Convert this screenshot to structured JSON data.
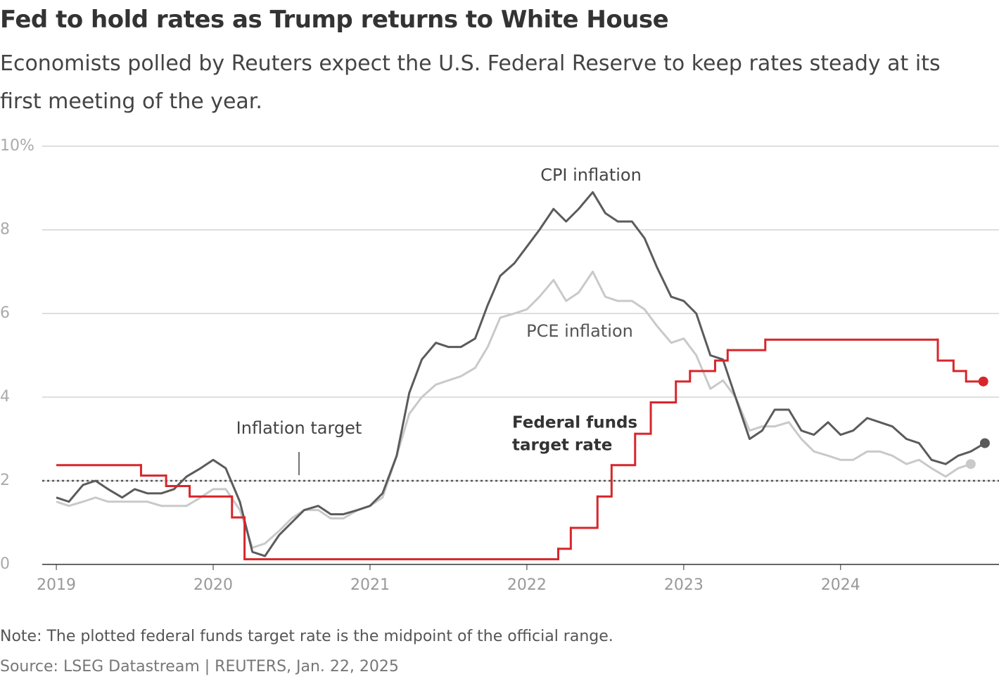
{
  "chart_data": {
    "type": "line",
    "title": "Fed to hold rates as Trump returns to White House",
    "subtitle": "Economists polled by Reuters expect the U.S. Federal Reserve to keep rates steady at its first meeting of the year.",
    "note": "Note: The plotted federal funds target rate is the midpoint of the official range.",
    "source": "Source: LSEG Datastream | REUTERS, Jan. 22, 2025",
    "x": [
      2019.0,
      2019.08,
      2019.17,
      2019.25,
      2019.33,
      2019.42,
      2019.5,
      2019.58,
      2019.67,
      2019.75,
      2019.83,
      2019.92,
      2020.0,
      2020.08,
      2020.17,
      2020.25,
      2020.33,
      2020.42,
      2020.5,
      2020.58,
      2020.67,
      2020.75,
      2020.83,
      2020.92,
      2021.0,
      2021.08,
      2021.17,
      2021.25,
      2021.33,
      2021.42,
      2021.5,
      2021.58,
      2021.67,
      2021.75,
      2021.83,
      2021.92,
      2022.0,
      2022.08,
      2022.17,
      2022.25,
      2022.33,
      2022.42,
      2022.5,
      2022.58,
      2022.67,
      2022.75,
      2022.83,
      2022.92,
      2023.0,
      2023.08,
      2023.17,
      2023.25,
      2023.33,
      2023.42,
      2023.5,
      2023.58,
      2023.67,
      2023.75,
      2023.83,
      2023.92,
      2024.0,
      2024.08,
      2024.17,
      2024.25,
      2024.33,
      2024.42,
      2024.5,
      2024.58,
      2024.67,
      2024.75,
      2024.83,
      2024.92
    ],
    "series": [
      {
        "name": "CPI inflation",
        "color": "#5b5b5b",
        "values": [
          1.6,
          1.5,
          1.9,
          2.0,
          1.8,
          1.6,
          1.8,
          1.7,
          1.7,
          1.8,
          2.1,
          2.3,
          2.5,
          2.3,
          1.5,
          0.3,
          0.2,
          0.7,
          1.0,
          1.3,
          1.4,
          1.2,
          1.2,
          1.3,
          1.4,
          1.7,
          2.6,
          4.1,
          4.9,
          5.3,
          5.2,
          5.2,
          5.4,
          6.2,
          6.9,
          7.2,
          7.6,
          8.0,
          8.5,
          8.2,
          8.5,
          8.9,
          8.4,
          8.2,
          8.2,
          7.8,
          7.1,
          6.4,
          6.3,
          6.0,
          5.0,
          4.9,
          4.0,
          3.0,
          3.2,
          3.7,
          3.7,
          3.2,
          3.1,
          3.4,
          3.1,
          3.2,
          3.5,
          3.4,
          3.3,
          3.0,
          2.9,
          2.5,
          2.4,
          2.6,
          2.7,
          2.9
        ]
      },
      {
        "name": "PCE inflation",
        "color": "#c9c9c9",
        "values": [
          1.5,
          1.4,
          1.5,
          1.6,
          1.5,
          1.5,
          1.5,
          1.5,
          1.4,
          1.4,
          1.4,
          1.6,
          1.8,
          1.8,
          1.3,
          0.4,
          0.5,
          0.8,
          1.1,
          1.3,
          1.3,
          1.1,
          1.1,
          1.3,
          1.4,
          1.6,
          2.6,
          3.6,
          4.0,
          4.3,
          4.4,
          4.5,
          4.7,
          5.2,
          5.9,
          6.0,
          6.1,
          6.4,
          6.8,
          6.3,
          6.5,
          7.0,
          6.4,
          6.3,
          6.3,
          6.1,
          5.7,
          5.3,
          5.4,
          5.0,
          4.2,
          4.4,
          4.0,
          3.2,
          3.3,
          3.3,
          3.4,
          3.0,
          2.7,
          2.6,
          2.5,
          2.5,
          2.7,
          2.7,
          2.6,
          2.4,
          2.5,
          2.3,
          2.1,
          2.3,
          2.4,
          null
        ]
      },
      {
        "name": "Federal funds target rate",
        "color": "#d7262b",
        "step": true,
        "x": [
          2019.0,
          2019.54,
          2019.7,
          2019.85,
          2020.12,
          2020.2,
          2022.2,
          2022.28,
          2022.45,
          2022.54,
          2022.69,
          2022.79,
          2022.95,
          2023.04,
          2023.2,
          2023.28,
          2023.52,
          2024.62,
          2024.72,
          2024.8,
          2024.91
        ],
        "values": [
          2.375,
          2.125,
          1.875,
          1.625,
          1.125,
          0.125,
          0.375,
          0.875,
          1.625,
          2.375,
          3.125,
          3.875,
          4.375,
          4.625,
          4.875,
          5.125,
          5.375,
          4.875,
          4.625,
          4.375,
          4.375
        ]
      }
    ],
    "annotations": {
      "cpi": "CPI inflation",
      "pce": "PCE inflation",
      "target": "Inflation target",
      "fed": [
        "Federal funds",
        "target rate"
      ]
    },
    "target": 2,
    "xlim": [
      2018.91,
      2025.01
    ],
    "xticks": [
      2019,
      2020,
      2021,
      2022,
      2023,
      2024
    ],
    "ylim": [
      0,
      10
    ],
    "yticks": [
      0,
      2,
      4,
      6,
      8,
      {
        "value": 10,
        "label": "10%"
      }
    ],
    "grid": true
  }
}
